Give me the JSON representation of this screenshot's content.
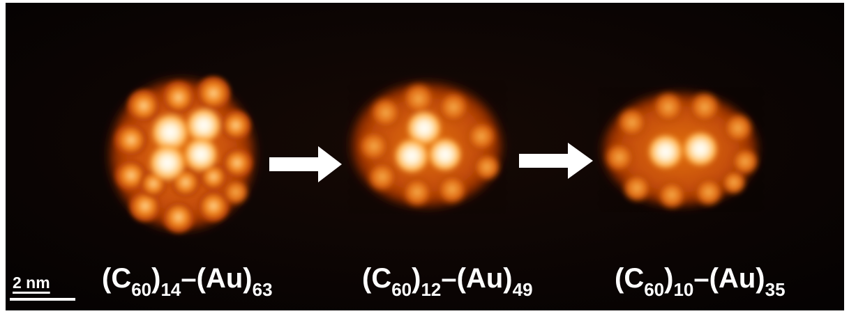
{
  "image": {
    "description_colors": {
      "background": "#0c0605",
      "cluster_dim": "#8a2a05",
      "cluster_mid": "#e06a12",
      "cluster_bright": "#ffd6a0",
      "cluster_peak": "#ffffff",
      "arrow": "#ffffff",
      "text": "#ffffff"
    }
  },
  "clusters": [
    {
      "c60_count": "14",
      "au_count": "63",
      "c_label": "(C",
      "c_sub": "60",
      "c_close": ")",
      "c_count_sub": "14",
      "au_label": "–(Au)",
      "au_sub": "63"
    },
    {
      "c60_count": "12",
      "au_count": "49",
      "c_label": "(C",
      "c_sub": "60",
      "c_close": ")",
      "c_count_sub": "12",
      "au_label": "–(Au)",
      "au_sub": "49"
    },
    {
      "c60_count": "10",
      "au_count": "35",
      "c_label": "(C",
      "c_sub": "60",
      "c_close": ")",
      "c_count_sub": "10",
      "au_label": "–(Au)",
      "au_sub": "35"
    }
  ],
  "arrows": [
    {
      "icon": "right-arrow-icon"
    },
    {
      "icon": "right-arrow-icon"
    }
  ],
  "scale_bar": {
    "label": "2 nm"
  }
}
